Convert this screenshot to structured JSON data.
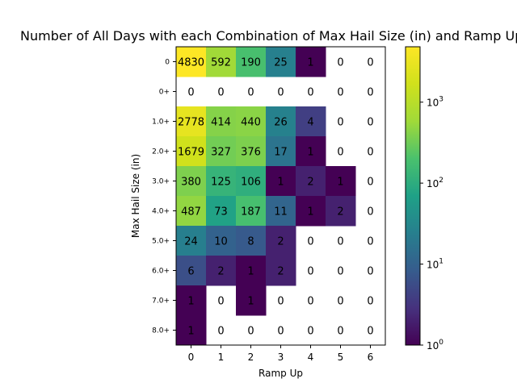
{
  "chart_data": {
    "type": "heatmap",
    "title": "Number of All Days with each Combination of Max Hail Size (in) and Ramp Up",
    "xlabel": "Ramp Up",
    "ylabel": "Max Hail Size (in)",
    "x_categories": [
      "0",
      "1",
      "2",
      "3",
      "4",
      "5",
      "6"
    ],
    "y_categories": [
      "0",
      "0+",
      "1.0+",
      "2.0+",
      "3.0+",
      "4.0+",
      "5.0+",
      "6.0+",
      "7.0+",
      "8.0+"
    ],
    "values": [
      [
        4830,
        592,
        190,
        25,
        1,
        0,
        0
      ],
      [
        0,
        0,
        0,
        0,
        0,
        0,
        0
      ],
      [
        2778,
        414,
        440,
        26,
        4,
        0,
        0
      ],
      [
        1679,
        327,
        376,
        17,
        1,
        0,
        0
      ],
      [
        380,
        125,
        106,
        1,
        2,
        1,
        0
      ],
      [
        487,
        73,
        187,
        11,
        1,
        2,
        0
      ],
      [
        24,
        10,
        8,
        2,
        0,
        0,
        0
      ],
      [
        6,
        2,
        1,
        2,
        0,
        0,
        0
      ],
      [
        1,
        0,
        1,
        0,
        0,
        0,
        0
      ],
      [
        1,
        0,
        0,
        0,
        0,
        0,
        0
      ]
    ],
    "color_scale": "log",
    "colormap": "viridis",
    "zero_cells": "blank (white)",
    "color_range": [
      1,
      4830
    ],
    "colorbar": {
      "ticks": [
        {
          "base": "10",
          "exp": "0"
        },
        {
          "base": "10",
          "exp": "1"
        },
        {
          "base": "10",
          "exp": "2"
        },
        {
          "base": "10",
          "exp": "3"
        }
      ]
    }
  }
}
